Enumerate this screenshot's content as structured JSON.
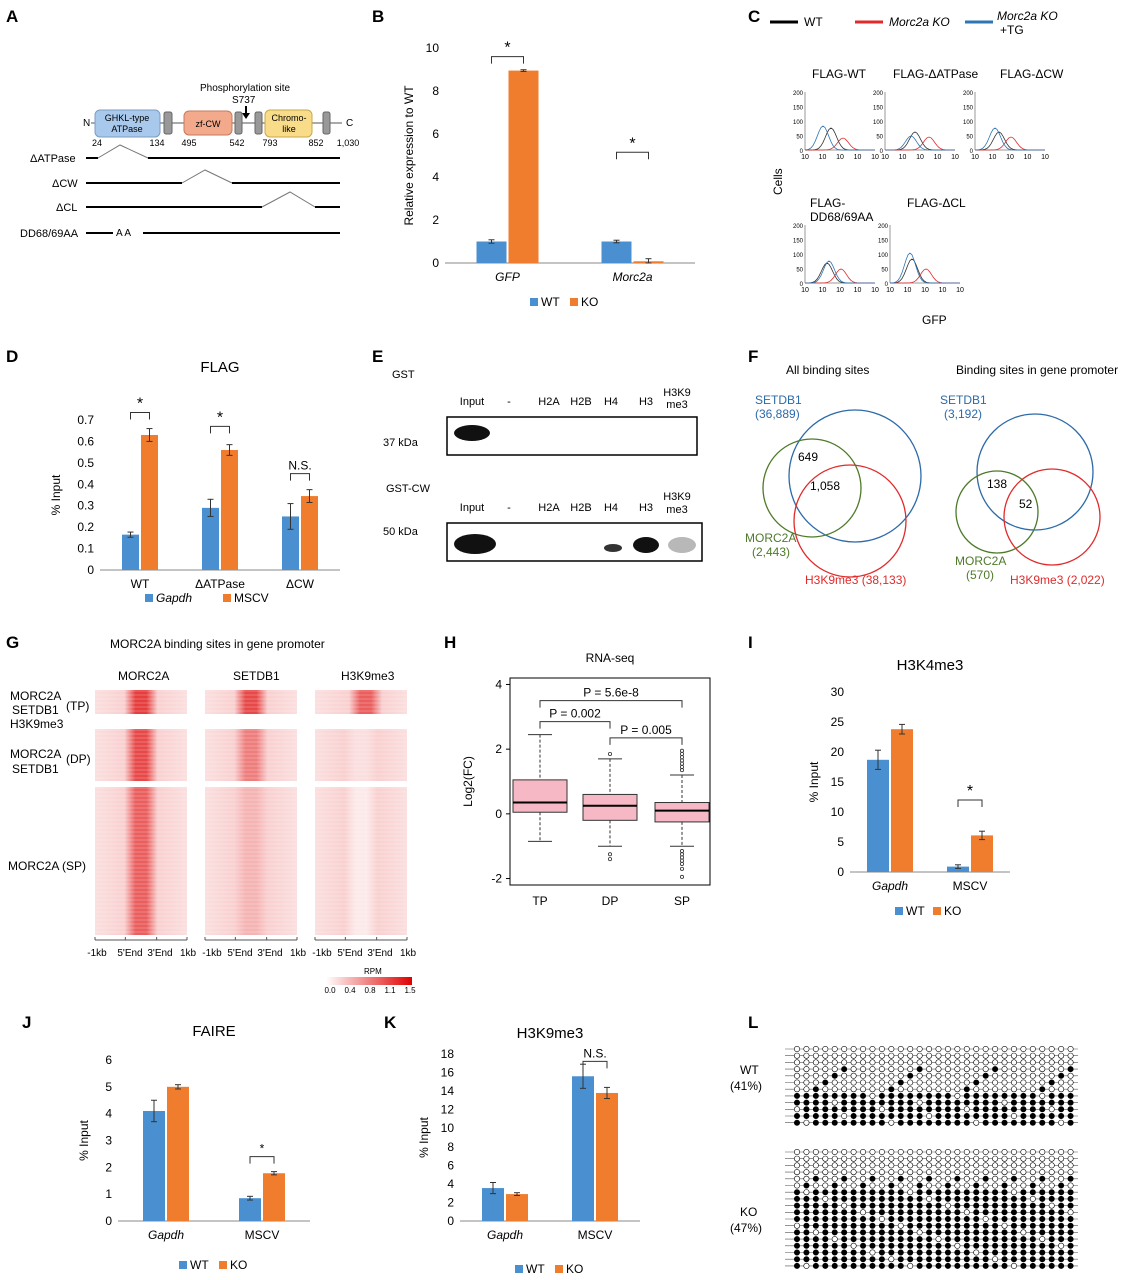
{
  "colors": {
    "wt": "#4a90d1",
    "ko": "#ef7d2d",
    "tg": "#2e75b6",
    "red": "#e02b2b",
    "olive": "#4e7a2a",
    "green": "#3c6e28",
    "blueRing": "#2c6aa8",
    "pink": "#f7b8c5"
  },
  "panelA": {
    "letter": "A",
    "phospho": "Phosphorylation site",
    "s737": "S737",
    "n": "N",
    "c": "C",
    "domains": [
      "GHKL-type",
      "ATPase",
      "zf-CW",
      "Chromo-",
      "like"
    ],
    "positions": [
      "24",
      "134",
      "495",
      "542",
      "793",
      "852",
      "1,030"
    ],
    "constructs": [
      "ΔATPase",
      "ΔCW",
      "ΔCL",
      "DD68/69AA"
    ],
    "aa": "A A"
  },
  "panelB": {
    "letter": "B",
    "ylabel": "Relative expression to WT",
    "yticks": [
      "0",
      "2",
      "4",
      "6",
      "8",
      "10"
    ],
    "categories": [
      "GFP",
      "Morc2a"
    ],
    "legend": [
      "WT",
      "KO"
    ],
    "star": "*"
  },
  "panelC": {
    "letter": "C",
    "legend": [
      "WT",
      "Morc2a KO",
      "Morc2a KO",
      "+TG"
    ],
    "titles": [
      "FLAG-WT",
      "FLAG-ΔATPase",
      "FLAG-ΔCW",
      "FLAG-",
      "DD68/69AA",
      "FLAG-ΔCL"
    ],
    "yticks": [
      "200",
      "150",
      "100",
      "50",
      "0"
    ],
    "xticks": [
      "10",
      "10",
      "10",
      "10",
      "10"
    ],
    "ylabel": "Cells",
    "xlabel": "GFP"
  },
  "panelD": {
    "letter": "D",
    "title": "FLAG",
    "ylabel": "% Input",
    "yticks": [
      "0",
      "0.1",
      "0.2",
      "0.3",
      "0.4",
      "0.5",
      "0.6",
      "0.7"
    ],
    "categories": [
      "WT",
      "ΔATPase",
      "ΔCW"
    ],
    "legend": [
      "Gapdh",
      "MSCV"
    ],
    "ns": "N.S.",
    "star": "*"
  },
  "panelE": {
    "letter": "E",
    "gst": "GST",
    "gstcw": "GST-CW",
    "lanes": [
      "Input",
      "-",
      "H2A",
      "H2B",
      "H4",
      "H3",
      "H3K9",
      "me3"
    ],
    "kda37": "37 kDa",
    "kda50": "50 kDa"
  },
  "panelF": {
    "letter": "F",
    "title1": "All binding sites",
    "title2": "Binding sites in gene promoter",
    "setdb1": "SETDB1",
    "n1": "(36,889)",
    "n1b": "(3,192)",
    "morc2a": "MORC2A",
    "m1": "(2,443)",
    "m2": "(570)",
    "h3k1": "H3K9me3 (38,133)",
    "h3k2": "H3K9me3 (2,022)",
    "ov1a": "649",
    "ov1b": "1,058",
    "ov2a": "138",
    "ov2b": "52"
  },
  "panelG": {
    "letter": "G",
    "title": "MORC2A binding sites in gene promoter",
    "cols": [
      "MORC2A",
      "SETDB1",
      "H3K9me3"
    ],
    "rows": [
      "MORC2A",
      "SETDB1",
      "H3K9me3",
      "(TP)",
      "MORC2A",
      "SETDB1",
      "(DP)",
      "MORC2A  (SP)"
    ],
    "xticks": [
      "-1kb",
      "5'End",
      "3'End",
      "1kb"
    ],
    "cb": "RPM",
    "cbticks": [
      "0.0",
      "0.4",
      "0.8",
      "1.1",
      "1.5"
    ]
  },
  "panelH": {
    "letter": "H",
    "title": "RNA-seq",
    "ylabel": "Log2(FC)",
    "yticks": [
      "4",
      "2",
      "0",
      "-2"
    ],
    "categories": [
      "TP",
      "DP",
      "SP"
    ],
    "p1": "P = 5.6e-8",
    "p2": "P = 0.002",
    "p3": "P = 0.005"
  },
  "panelI": {
    "letter": "I",
    "title": "H3K4me3",
    "ylabel": "% Input",
    "yticks": [
      "0",
      "5",
      "10",
      "15",
      "20",
      "25",
      "30"
    ],
    "categories": [
      "Gapdh",
      "MSCV"
    ],
    "legend": [
      "WT",
      "KO"
    ],
    "star": "*"
  },
  "panelJ": {
    "letter": "J",
    "title": "FAIRE",
    "ylabel": "% Input",
    "yticks": [
      "0",
      "1",
      "2",
      "3",
      "4",
      "5",
      "6"
    ],
    "categories": [
      "Gapdh",
      "MSCV"
    ],
    "legend": [
      "WT",
      "KO"
    ],
    "star": "*"
  },
  "panelK": {
    "letter": "K",
    "title": "H3K9me3",
    "ylabel": "% Input",
    "yticks": [
      "0",
      "2",
      "4",
      "6",
      "8",
      "10",
      "12",
      "14",
      "16",
      "18"
    ],
    "categories": [
      "Gapdh",
      "MSCV"
    ],
    "legend": [
      "WT",
      "KO"
    ],
    "ns": "N.S."
  },
  "panelL": {
    "letter": "L",
    "wt": "WT",
    "wtp": "(41%)",
    "ko": "KO",
    "kop": "(47%)"
  },
  "chart_data": [
    {
      "type": "bar",
      "panel": "B",
      "categories": [
        "GFP",
        "Morc2a"
      ],
      "series": [
        {
          "name": "WT",
          "values": [
            1.0,
            1.0
          ],
          "err": [
            0.08,
            0.06
          ]
        },
        {
          "name": "KO",
          "values": [
            8.95,
            0.08
          ],
          "err": [
            0.04,
            0.12
          ]
        }
      ],
      "ylabel": "Relative expression to WT",
      "ylim": [
        0,
        10
      ]
    },
    {
      "type": "bar",
      "panel": "D",
      "title": "FLAG",
      "categories": [
        "WT",
        "ΔATPase",
        "ΔCW"
      ],
      "series": [
        {
          "name": "Gapdh",
          "values": [
            0.165,
            0.29,
            0.25
          ],
          "err": [
            0.012,
            0.04,
            0.06
          ]
        },
        {
          "name": "MSCV",
          "values": [
            0.63,
            0.56,
            0.345
          ],
          "err": [
            0.03,
            0.025,
            0.03
          ]
        }
      ],
      "ylabel": "% Input",
      "ylim": [
        0,
        0.7
      ]
    },
    {
      "type": "box",
      "panel": "H",
      "title": "RNA-seq",
      "categories": [
        "TP",
        "DP",
        "SP"
      ],
      "boxes": [
        {
          "min": -0.85,
          "q1": 0.05,
          "median": 0.35,
          "q3": 1.05,
          "max": 2.45
        },
        {
          "min": -1.0,
          "q1": -0.2,
          "median": 0.25,
          "q3": 0.6,
          "max": 1.7
        },
        {
          "min": -1.0,
          "q1": -0.25,
          "median": 0.1,
          "q3": 0.35,
          "max": 1.2
        }
      ],
      "ylabel": "Log2(FC)",
      "ylim": [
        -2.2,
        4.2
      ]
    },
    {
      "type": "bar",
      "panel": "I",
      "title": "H3K4me3",
      "categories": [
        "Gapdh",
        "MSCV"
      ],
      "series": [
        {
          "name": "WT",
          "values": [
            18.7,
            0.9
          ],
          "err": [
            1.6,
            0.3
          ]
        },
        {
          "name": "KO",
          "values": [
            23.8,
            6.1
          ],
          "err": [
            0.8,
            0.7
          ]
        }
      ],
      "ylabel": "% Input",
      "ylim": [
        0,
        30
      ]
    },
    {
      "type": "bar",
      "panel": "J",
      "title": "FAIRE",
      "categories": [
        "Gapdh",
        "MSCV"
      ],
      "series": [
        {
          "name": "WT",
          "values": [
            4.1,
            0.85
          ],
          "err": [
            0.4,
            0.07
          ]
        },
        {
          "name": "KO",
          "values": [
            5.0,
            1.78
          ],
          "err": [
            0.08,
            0.06
          ]
        }
      ],
      "ylabel": "% Input",
      "ylim": [
        0,
        6
      ]
    },
    {
      "type": "bar",
      "panel": "K",
      "title": "H3K9me3",
      "categories": [
        "Gapdh",
        "MSCV"
      ],
      "series": [
        {
          "name": "WT",
          "values": [
            3.55,
            15.6
          ],
          "err": [
            0.6,
            1.3
          ]
        },
        {
          "name": "KO",
          "values": [
            2.9,
            13.8
          ],
          "err": [
            0.15,
            0.6
          ]
        }
      ],
      "ylabel": "% Input",
      "ylim": [
        0,
        18
      ]
    }
  ]
}
